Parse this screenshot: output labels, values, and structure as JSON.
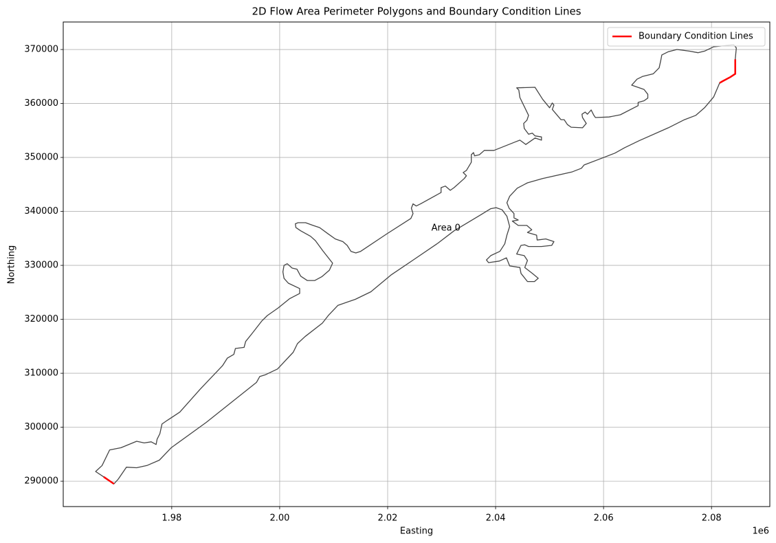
{
  "chart_data": {
    "type": "polygon",
    "title": "2D Flow Area Perimeter Polygons and Boundary Condition Lines",
    "xlabel": "Easting",
    "ylabel": "Northing",
    "x_offset_label": "1e6",
    "xlim": [
      1959900,
      2090800
    ],
    "ylim": [
      285300,
      375100
    ],
    "xticks": [
      {
        "value": 1980000,
        "label": "1.98"
      },
      {
        "value": 2000000,
        "label": "2.00"
      },
      {
        "value": 2020000,
        "label": "2.02"
      },
      {
        "value": 2040000,
        "label": "2.04"
      },
      {
        "value": 2060000,
        "label": "2.06"
      },
      {
        "value": 2080000,
        "label": "2.08"
      }
    ],
    "yticks": [
      290000,
      300000,
      310000,
      320000,
      330000,
      340000,
      350000,
      360000,
      370000
    ],
    "grid": true,
    "legend_location": "upper right",
    "polygons": [
      {
        "label": "Area 0",
        "label_x": 2030800,
        "label_y": 336900,
        "color": "#444444",
        "x": [
          1965900,
          1967100,
          1968500,
          1970600,
          1973500,
          1974900,
          1976200,
          1977100,
          1977300,
          1977800,
          1978200,
          1979200,
          1981500,
          1985300,
          1989400,
          1990300,
          1991500,
          1991800,
          1993400,
          1993700,
          1994900,
          1996700,
          1997700,
          1999700,
          2001800,
          2003700,
          2003700,
          2001600,
          2000800,
          2000600,
          2000800,
          2001400,
          2002300,
          2003200,
          2003900,
          2005100,
          2006500,
          2007800,
          2009200,
          2009800,
          2008000,
          2006600,
          2005700,
          2003900,
          2003000,
          2002900,
          2003400,
          2004800,
          2006200,
          2007400,
          2008900,
          2010300,
          2011700,
          2012500,
          2013200,
          2014100,
          2015000,
          2019800,
          2024300,
          2024700,
          2024400,
          2024700,
          2025300,
          2026100,
          2029900,
          2029900,
          2030700,
          2031600,
          2032300,
          2034200,
          2034600,
          2034000,
          2034600,
          2035500,
          2035500,
          2035900,
          2036100,
          2037000,
          2037900,
          2039700,
          2043700,
          2044500,
          2045600,
          2047300,
          2048500,
          2048500,
          2047300,
          2046800,
          2046100,
          2045300,
          2045200,
          2045800,
          2046100,
          2044500,
          2044300,
          2043900,
          2047300,
          2048700,
          2050000,
          2050500,
          2050800,
          2050500,
          2052100,
          2052700,
          2053300,
          2054000,
          2056100,
          2056800,
          2056100,
          2056000,
          2056600,
          2057000,
          2057700,
          2058200,
          2058500,
          2061000,
          2063100,
          2066400,
          2066400,
          2067500,
          2068200,
          2068200,
          2067500,
          2065200,
          2066200,
          2067200,
          2069200,
          2070300,
          2070600,
          2070800,
          2072000,
          2073600,
          2075900,
          2077500,
          2078700,
          2080400,
          2084100,
          2084600,
          2084400,
          2084400,
          2083500,
          2082000,
          2081500,
          2080400,
          2078700,
          2077100,
          2075000,
          2072000,
          2066600,
          2063900,
          2062100,
          2059800,
          2056400,
          2055900,
          2054100,
          2048700,
          2045900,
          2044000,
          2042600,
          2042100,
          2042500,
          2043400,
          2043400,
          2044200,
          2043100,
          2044200,
          2045800,
          2046700,
          2045900,
          2047600,
          2047700,
          2049300,
          2050800,
          2050400,
          2048500,
          2046100,
          2045400,
          2044700,
          2043900,
          2045300,
          2045900,
          2045400,
          2046800,
          2047900,
          2047200,
          2045900,
          2044700,
          2044500,
          2042600,
          2042000,
          2040700,
          2038700,
          2038300,
          2039100,
          2040800,
          2041700,
          2042100,
          2042600,
          2042100,
          2041200,
          2040100,
          2039100,
          2037300,
          2032300,
          2029300,
          2024600,
          2020600,
          2016900,
          2014000,
          2010800,
          2009000,
          2007900,
          2004700,
          2003300,
          2002500,
          1999600,
          1997300,
          1996300,
          1995700,
          1986400,
          1979900,
          1977700,
          1975400,
          1973500,
          1971600,
          1970100,
          1969300,
          1967400
        ],
        "y": [
          291800,
          292900,
          295800,
          296200,
          297400,
          297100,
          297300,
          296800,
          297800,
          298800,
          300600,
          301300,
          302800,
          307100,
          311400,
          312800,
          313500,
          314600,
          314800,
          315900,
          317400,
          319700,
          320700,
          322100,
          323800,
          324800,
          325700,
          326700,
          327600,
          328800,
          330000,
          330300,
          329500,
          329300,
          328000,
          327200,
          327200,
          327900,
          329100,
          330400,
          332700,
          334600,
          335400,
          336400,
          337000,
          337700,
          337900,
          337900,
          337400,
          337000,
          335900,
          334900,
          334400,
          333700,
          332600,
          332300,
          332600,
          335800,
          338700,
          339600,
          340600,
          341400,
          341000,
          341400,
          343500,
          344400,
          344700,
          343900,
          344400,
          346100,
          346600,
          347200,
          347600,
          349100,
          350500,
          350900,
          350300,
          350500,
          351300,
          351300,
          352900,
          353200,
          352400,
          353600,
          353200,
          353800,
          354000,
          354500,
          354300,
          355400,
          356300,
          356900,
          357800,
          361100,
          362500,
          362900,
          363000,
          360800,
          359200,
          360100,
          359700,
          358900,
          357000,
          357000,
          356100,
          355600,
          355500,
          356300,
          357400,
          358000,
          358400,
          358000,
          358800,
          357800,
          357400,
          357500,
          357900,
          359600,
          360200,
          360500,
          361000,
          361700,
          362600,
          363400,
          364500,
          365000,
          365500,
          366600,
          368000,
          369000,
          369600,
          370000,
          369700,
          369400,
          369700,
          370500,
          370900,
          370300,
          368200,
          365500,
          364900,
          364100,
          363800,
          361200,
          359200,
          357800,
          357000,
          355500,
          353100,
          351800,
          350800,
          349900,
          348600,
          348000,
          347300,
          346100,
          345300,
          344300,
          342800,
          341600,
          340600,
          339600,
          338800,
          338400,
          338200,
          337400,
          337400,
          336600,
          336100,
          335600,
          334700,
          334900,
          334400,
          333700,
          333500,
          333500,
          333800,
          333700,
          332100,
          331800,
          330900,
          329600,
          328500,
          327600,
          327000,
          327000,
          328500,
          329600,
          329900,
          331400,
          330800,
          330500,
          331000,
          331800,
          332600,
          334000,
          335600,
          337200,
          339100,
          340300,
          340700,
          340500,
          339400,
          336400,
          334100,
          330900,
          328200,
          325100,
          323700,
          322600,
          320700,
          319300,
          316800,
          315500,
          313900,
          310800,
          309700,
          309400,
          308300,
          300900,
          296200,
          293900,
          292900,
          292500,
          292600,
          290400,
          289500,
          290800
        ]
      }
    ],
    "series": [
      {
        "name": "Boundary Condition Lines",
        "color": "#ff0000",
        "lines": [
          {
            "x": [
              2084400,
              2084400,
              2083500,
              2082000,
              2081500
            ],
            "y": [
              368200,
              365500,
              364900,
              364100,
              363800
            ]
          },
          {
            "x": [
              1967400,
              1969300
            ],
            "y": [
              290800,
              289500
            ]
          }
        ]
      }
    ]
  }
}
